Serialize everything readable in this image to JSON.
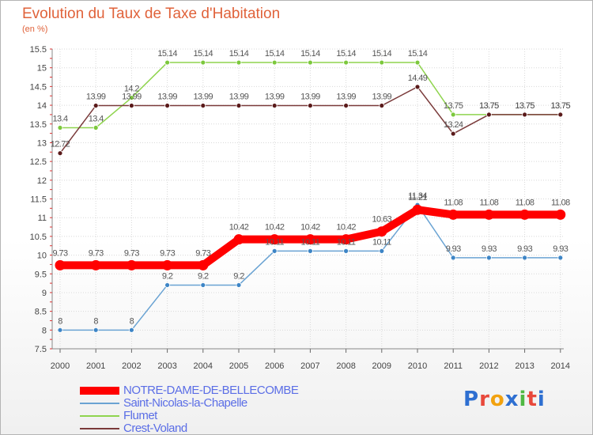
{
  "title": "Evolution du Taux de Taxe d'Habitation",
  "unit_label": "(en %)",
  "brand": {
    "name": "Proxiti",
    "letter_colors": [
      "#2e6fd1",
      "#e8483b",
      "#f2a20f",
      "#2e6fd1",
      "#4fb843",
      "#e8483b",
      "#2e6fd1"
    ]
  },
  "chart_data": {
    "type": "line",
    "title": "Evolution du Taux de Taxe d'Habitation",
    "ylabel": "(en %)",
    "xlabel": "",
    "ylim": [
      7.5,
      15.5
    ],
    "yticks": [
      "7.5",
      "8",
      "8.5",
      "9",
      "9.5",
      "10",
      "10.5",
      "11",
      "11.5",
      "12",
      "12.5",
      "13",
      "13.5",
      "14",
      "14.5",
      "15",
      "15.5"
    ],
    "categories": [
      "2000",
      "2001",
      "2002",
      "2003",
      "2004",
      "2005",
      "2006",
      "2007",
      "2008",
      "2009",
      "2010",
      "2011",
      "2012",
      "2013",
      "2014"
    ],
    "grid": true,
    "legend_position": "bottom-left",
    "series": [
      {
        "name": "Flumet",
        "color": "#8fd44e",
        "marker_fill": "#7cc83c",
        "emphasis": false,
        "values": [
          13.4,
          13.4,
          14.2,
          15.14,
          15.14,
          15.14,
          15.14,
          15.14,
          15.14,
          15.14,
          15.14,
          13.75,
          13.75,
          13.75,
          13.75
        ],
        "labels": [
          "13.4",
          "13.4",
          "14.2",
          "15.14",
          "15.14",
          "15.14",
          "15.14",
          "15.14",
          "15.14",
          "15.14",
          "15.14",
          "13.75",
          "13.75",
          "13.75",
          "13.75"
        ]
      },
      {
        "name": "Crest-Voland",
        "color": "#7a3a3a",
        "marker_fill": "#5a1a1a",
        "emphasis": false,
        "values": [
          12.72,
          13.99,
          13.99,
          13.99,
          13.99,
          13.99,
          13.99,
          13.99,
          13.99,
          13.99,
          14.49,
          13.24,
          13.75,
          13.75,
          13.75
        ],
        "labels": [
          "12.72",
          "13.99",
          "13.99",
          "13.99",
          "13.99",
          "13.99",
          "13.99",
          "13.99",
          "13.99",
          "13.99",
          "14.49",
          "13.24",
          "13.75",
          "13.75",
          "13.75"
        ]
      },
      {
        "name": "Saint-Nicolas-la-Chapelle",
        "color": "#6aa3d3",
        "marker_fill": "#3d85c6",
        "emphasis": false,
        "values": [
          8,
          8,
          8,
          9.2,
          9.2,
          9.2,
          10.11,
          10.11,
          10.11,
          10.11,
          11.34,
          9.93,
          9.93,
          9.93,
          9.93
        ],
        "labels": [
          "8",
          "8",
          "8",
          "9.2",
          "9.2",
          "9.2",
          "10.11",
          "10.11",
          "10.11",
          "10.11",
          "11.34",
          "9.93",
          "9.93",
          "9.93",
          "9.93"
        ]
      },
      {
        "name": "NOTRE-DAME-DE-BELLECOMBE",
        "color": "#ff0000",
        "marker_fill": "#ff0000",
        "emphasis": true,
        "values": [
          9.73,
          9.73,
          9.73,
          9.73,
          9.73,
          10.42,
          10.42,
          10.42,
          10.42,
          10.63,
          11.21,
          11.08,
          11.08,
          11.08,
          11.08
        ],
        "labels": [
          "9.73",
          "9.73",
          "9.73",
          "9.73",
          "9.73",
          "10.42",
          "10.42",
          "10.42",
          "10.42",
          "10.63",
          "11.21",
          "11.08",
          "11.08",
          "11.08",
          "11.08"
        ]
      }
    ],
    "legend_order": [
      "NOTRE-DAME-DE-BELLECOMBE",
      "Saint-Nicolas-la-Chapelle",
      "Flumet",
      "Crest-Voland"
    ]
  }
}
